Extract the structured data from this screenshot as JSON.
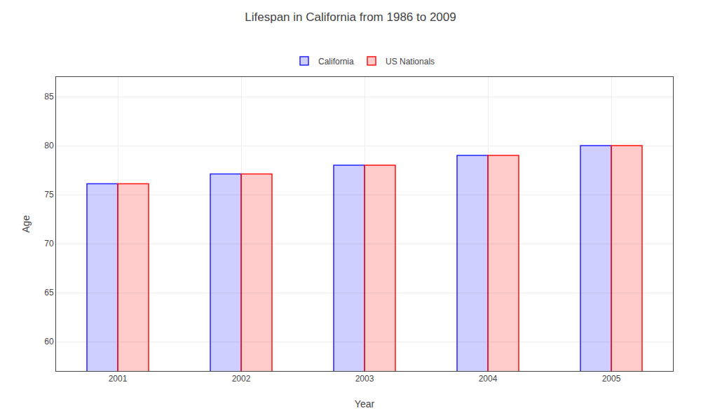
{
  "chart_data": {
    "type": "bar",
    "title": "Lifespan in California from 1986 to 2009",
    "xlabel": "Year",
    "ylabel": "Age",
    "categories": [
      "2001",
      "2002",
      "2003",
      "2004",
      "2005"
    ],
    "series": [
      {
        "name": "California",
        "color": "#2222ff",
        "values": [
          76.1,
          77.1,
          78.0,
          79.0,
          80.0
        ]
      },
      {
        "name": "US Nationals",
        "color": "#ff1111",
        "values": [
          76.1,
          77.1,
          78.0,
          79.0,
          80.0
        ]
      }
    ],
    "ylim": [
      57,
      87
    ],
    "yticks": [
      60,
      65,
      70,
      75,
      80,
      85
    ],
    "grid": true,
    "legend": "top"
  }
}
